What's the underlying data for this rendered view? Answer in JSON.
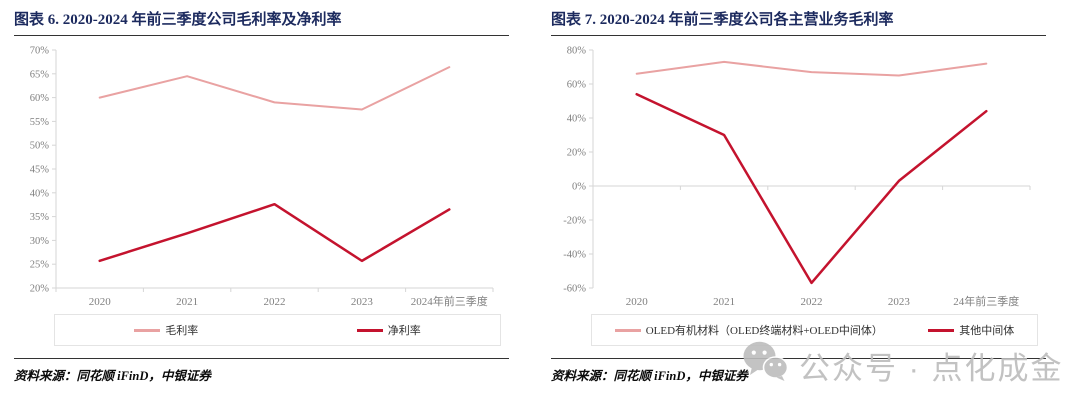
{
  "colors": {
    "accent_pink": "#E9A2A2",
    "accent_red": "#C4132E",
    "title_text": "#1C2A5E",
    "axis_line": "#D6D6D6",
    "tick_label": "#808080",
    "watermark": "#BCBCBC"
  },
  "chart_data": [
    {
      "type": "line",
      "title": "图表 6. 2020-2024 年前三季度公司毛利率及净利率",
      "categories": [
        "2020",
        "2021",
        "2022",
        "2023",
        "2024年前三季度"
      ],
      "series": [
        {
          "name": "毛利率",
          "color": "#E9A2A2",
          "width": 2,
          "values": [
            60.0,
            64.5,
            59.0,
            57.5,
            66.4
          ]
        },
        {
          "name": "净利率",
          "color": "#C4132E",
          "width": 2.5,
          "values": [
            25.7,
            31.5,
            37.6,
            25.7,
            36.5
          ]
        }
      ],
      "ylim": [
        20,
        70
      ],
      "ystep": 5,
      "baseline": 20,
      "ytick_suffix": "%",
      "ytick_labels": [
        "20%",
        "25%",
        "30%",
        "35%",
        "40%",
        "45%",
        "50%",
        "55%",
        "60%",
        "65%",
        "70%"
      ],
      "grid": false,
      "legend_position": "bottom"
    },
    {
      "type": "line",
      "title": "图表 7. 2020-2024 年前三季度公司各主营业务毛利率",
      "categories": [
        "2020",
        "2021",
        "2022",
        "2023",
        "24年前三季度"
      ],
      "series": [
        {
          "name": "OLED有机材料（OLED终端材料+OLED中间体）",
          "color": "#E9A2A2",
          "width": 2,
          "values": [
            66,
            73,
            67,
            65,
            72
          ]
        },
        {
          "name": "其他中间体",
          "color": "#C4132E",
          "width": 2.5,
          "values": [
            54,
            30,
            -57,
            3,
            44
          ]
        }
      ],
      "ylim": [
        -60,
        80
      ],
      "ystep": 20,
      "baseline": 0,
      "ytick_suffix": "%",
      "ytick_labels": [
        "-60%",
        "-40%",
        "-20%",
        "0%",
        "20%",
        "40%",
        "60%",
        "80%"
      ],
      "grid": false,
      "legend_position": "bottom"
    }
  ],
  "panels": [
    {
      "source": "资料来源：同花顺 iFinD，中银证券"
    },
    {
      "source": "资料来源：同花顺 iFinD，中银证券"
    }
  ],
  "watermark": {
    "text": "公众号 · 点化成金"
  }
}
